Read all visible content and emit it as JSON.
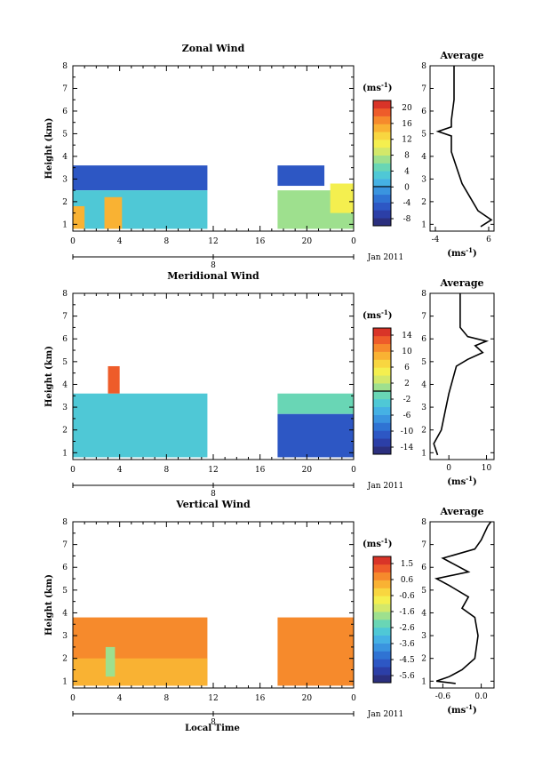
{
  "figure": {
    "x_axis_label": "Local Time"
  },
  "colors": {
    "colormap": [
      "#2b2f7e",
      "#2c3fa7",
      "#2d57c4",
      "#2f73d3",
      "#3a94df",
      "#45b1e4",
      "#4fc8d6",
      "#69d6b5",
      "#9ee08e",
      "#d3e86a",
      "#f4ef4f",
      "#f8d640",
      "#f9b233",
      "#f68a2c",
      "#ee5c2a",
      "#d93428"
    ],
    "contour": "#000000",
    "profile": "#000000"
  },
  "chart_data": [
    {
      "type": "heatmap",
      "name": "zonal",
      "title": "Zonal Wind",
      "ylabel": "Height (km)",
      "units": "(ms",
      "units_sup": "-1",
      "x_ticks": [
        "0",
        "4",
        "8",
        "12",
        "16",
        "20",
        "0"
      ],
      "x_range": [
        0,
        24
      ],
      "y_ticks": [
        "1",
        "2",
        "3",
        "4",
        "5",
        "6",
        "7",
        "8"
      ],
      "y_range": [
        0.7,
        8.0
      ],
      "date_tick": "8",
      "date_label": "Jan 2011",
      "colorbar_ticks": [
        "20",
        "16",
        "12",
        "8",
        "4",
        "0",
        "-4",
        "-8"
      ],
      "colorbar_range": [
        -10,
        22
      ],
      "zero_line": 0,
      "data_blocks": [
        {
          "x": [
            0,
            11.5
          ],
          "y": [
            2.5,
            3.6
          ],
          "value": -6
        },
        {
          "x": [
            0,
            11.5
          ],
          "y": [
            0.8,
            2.5
          ],
          "value": 2
        },
        {
          "x": [
            0,
            1
          ],
          "y": [
            0.8,
            1.8
          ],
          "value": 14
        },
        {
          "x": [
            2.7,
            4.2
          ],
          "y": [
            0.8,
            2.2
          ],
          "value": 14
        },
        {
          "x": [
            17.5,
            21.5
          ],
          "y": [
            2.7,
            3.6
          ],
          "value": -6
        },
        {
          "x": [
            17.5,
            24
          ],
          "y": [
            0.8,
            2.5
          ],
          "value": 6
        },
        {
          "x": [
            22,
            24
          ],
          "y": [
            1.5,
            2.8
          ],
          "value": 11
        }
      ],
      "profile": {
        "title": "Average",
        "x_ticks": [
          "-4",
          "6"
        ],
        "x_range": [
          -5,
          7
        ],
        "xlabel": "(ms",
        "xlabel_sup": "-1",
        "points": [
          [
            4.5,
            0.9
          ],
          [
            6.5,
            1.2
          ],
          [
            4.0,
            1.6
          ],
          [
            2.5,
            2.2
          ],
          [
            1.0,
            2.8
          ],
          [
            0.0,
            3.5
          ],
          [
            -1.0,
            4.2
          ],
          [
            -1.0,
            4.9
          ],
          [
            -3.5,
            5.1
          ],
          [
            -1.0,
            5.3
          ],
          [
            -1.0,
            5.6
          ],
          [
            -0.5,
            6.5
          ],
          [
            -0.5,
            7.5
          ],
          [
            -0.5,
            8.0
          ]
        ]
      }
    },
    {
      "type": "heatmap",
      "name": "meridional",
      "title": "Meridional Wind",
      "ylabel": "Height (km)",
      "units": "(ms",
      "units_sup": "-1",
      "x_ticks": [
        "0",
        "4",
        "8",
        "12",
        "16",
        "20",
        "0"
      ],
      "x_range": [
        0,
        24
      ],
      "y_ticks": [
        "1",
        "2",
        "3",
        "4",
        "5",
        "6",
        "7",
        "8"
      ],
      "y_range": [
        0.7,
        8.0
      ],
      "date_tick": "8",
      "date_label": "Jan 2011",
      "colorbar_ticks": [
        "14",
        "10",
        "6",
        "2",
        "-2",
        "-6",
        "-10",
        "-14"
      ],
      "colorbar_range": [
        -16,
        16
      ],
      "zero_line": 0,
      "data_blocks": [
        {
          "x": [
            0,
            11.5
          ],
          "y": [
            0.8,
            3.6
          ],
          "value": -3
        },
        {
          "x": [
            3,
            4
          ],
          "y": [
            3.6,
            4.8
          ],
          "value": 12
        },
        {
          "x": [
            17.5,
            24
          ],
          "y": [
            2.7,
            3.6
          ],
          "value": -1
        },
        {
          "x": [
            17.5,
            24
          ],
          "y": [
            0.8,
            2.7
          ],
          "value": -12
        }
      ],
      "profile": {
        "title": "Average",
        "x_ticks": [
          "0",
          "10"
        ],
        "x_range": [
          -5,
          12
        ],
        "xlabel": "(ms",
        "xlabel_sup": "-1",
        "points": [
          [
            -3,
            0.9
          ],
          [
            -4,
            1.4
          ],
          [
            -2,
            2.0
          ],
          [
            -1,
            2.8
          ],
          [
            0,
            3.6
          ],
          [
            1,
            4.2
          ],
          [
            2,
            4.8
          ],
          [
            5,
            5.1
          ],
          [
            9,
            5.4
          ],
          [
            7,
            5.7
          ],
          [
            10,
            5.9
          ],
          [
            5,
            6.1
          ],
          [
            3,
            6.5
          ],
          [
            3,
            7.5
          ],
          [
            3,
            8.0
          ]
        ]
      }
    },
    {
      "type": "heatmap",
      "name": "vertical",
      "title": "Vertical Wind",
      "ylabel": "Height (km)",
      "units": "(ms",
      "units_sup": "-1",
      "x_ticks": [
        "0",
        "4",
        "8",
        "12",
        "16",
        "20",
        "0"
      ],
      "x_range": [
        0,
        24
      ],
      "y_ticks": [
        "1",
        "2",
        "3",
        "4",
        "5",
        "6",
        "7",
        "8"
      ],
      "y_range": [
        0.7,
        8.0
      ],
      "date_tick": "8",
      "date_label": "Jan 2011",
      "colorbar_ticks": [
        "1.5",
        "0.6",
        "-0.6",
        "-1.6",
        "-2.6",
        "-3.6",
        "-4.5",
        "-5.6"
      ],
      "colorbar_range": [
        -6.0,
        2.0
      ],
      "zero_line": null,
      "data_blocks": [
        {
          "x": [
            0,
            11.5
          ],
          "y": [
            0.8,
            3.8
          ],
          "value": 0.5
        },
        {
          "x": [
            0,
            11.5
          ],
          "y": [
            0.8,
            2.0
          ],
          "value": 0.0
        },
        {
          "x": [
            2.8,
            3.6
          ],
          "y": [
            1.2,
            2.5
          ],
          "value": -2.0
        },
        {
          "x": [
            17.5,
            24
          ],
          "y": [
            0.8,
            3.8
          ],
          "value": 0.5
        }
      ],
      "profile": {
        "title": "Average",
        "x_ticks": [
          "-0.6",
          "0.0"
        ],
        "x_range": [
          -0.8,
          0.2
        ],
        "xlabel": "(ms",
        "xlabel_sup": "-1",
        "points": [
          [
            -0.4,
            0.9
          ],
          [
            -0.7,
            1.0
          ],
          [
            -0.5,
            1.2
          ],
          [
            -0.3,
            1.5
          ],
          [
            -0.1,
            2.0
          ],
          [
            -0.05,
            3.0
          ],
          [
            -0.1,
            3.8
          ],
          [
            -0.3,
            4.2
          ],
          [
            -0.2,
            4.7
          ],
          [
            -0.5,
            5.2
          ],
          [
            -0.7,
            5.5
          ],
          [
            -0.2,
            5.8
          ],
          [
            -0.6,
            6.4
          ],
          [
            -0.1,
            6.8
          ],
          [
            0.0,
            7.2
          ],
          [
            0.1,
            7.8
          ],
          [
            0.15,
            8.0
          ]
        ]
      }
    }
  ]
}
